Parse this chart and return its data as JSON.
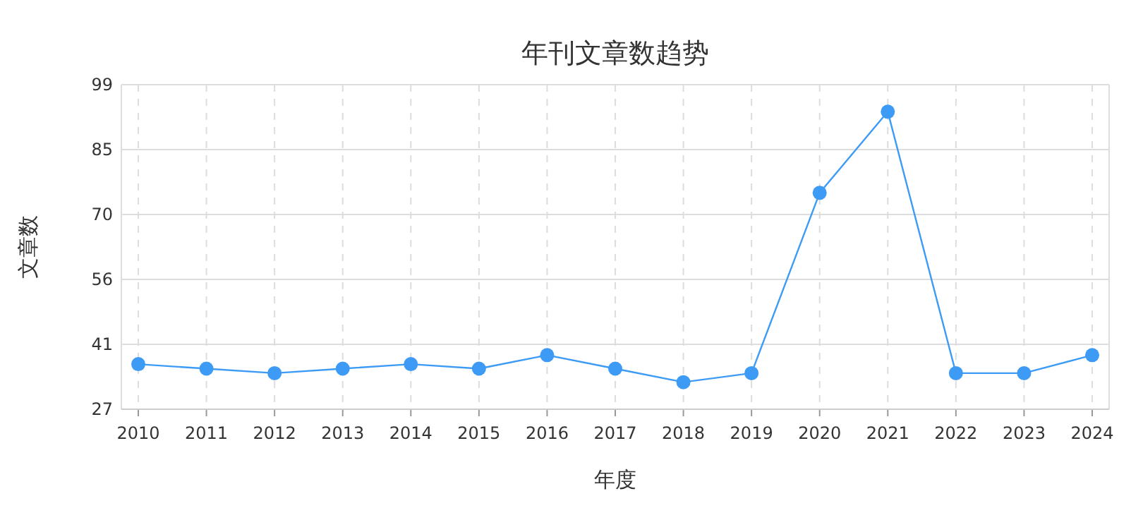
{
  "chart_data": {
    "type": "line",
    "title": "年刊文章数趋势",
    "xlabel": "年度",
    "ylabel": "文章数",
    "categories": [
      "2010",
      "2011",
      "2012",
      "2013",
      "2014",
      "2015",
      "2016",
      "2017",
      "2018",
      "2019",
      "2020",
      "2021",
      "2022",
      "2023",
      "2024"
    ],
    "series": [
      {
        "color": "#3d9bf5",
        "values": [
          37,
          36,
          35,
          36,
          37,
          36,
          39,
          36,
          33,
          35,
          75,
          93,
          35,
          35,
          39
        ]
      }
    ],
    "ylim": [
      27,
      99
    ],
    "yticks": [
      27,
      {
        "value": 41.4,
        "label": "41"
      },
      {
        "value": 55.8,
        "label": "56"
      },
      {
        "value": 70.2,
        "label": "70"
      },
      {
        "value": 84.6,
        "label": "85"
      },
      99
    ],
    "grid": true,
    "marker": "circle",
    "line_style": "solid"
  }
}
